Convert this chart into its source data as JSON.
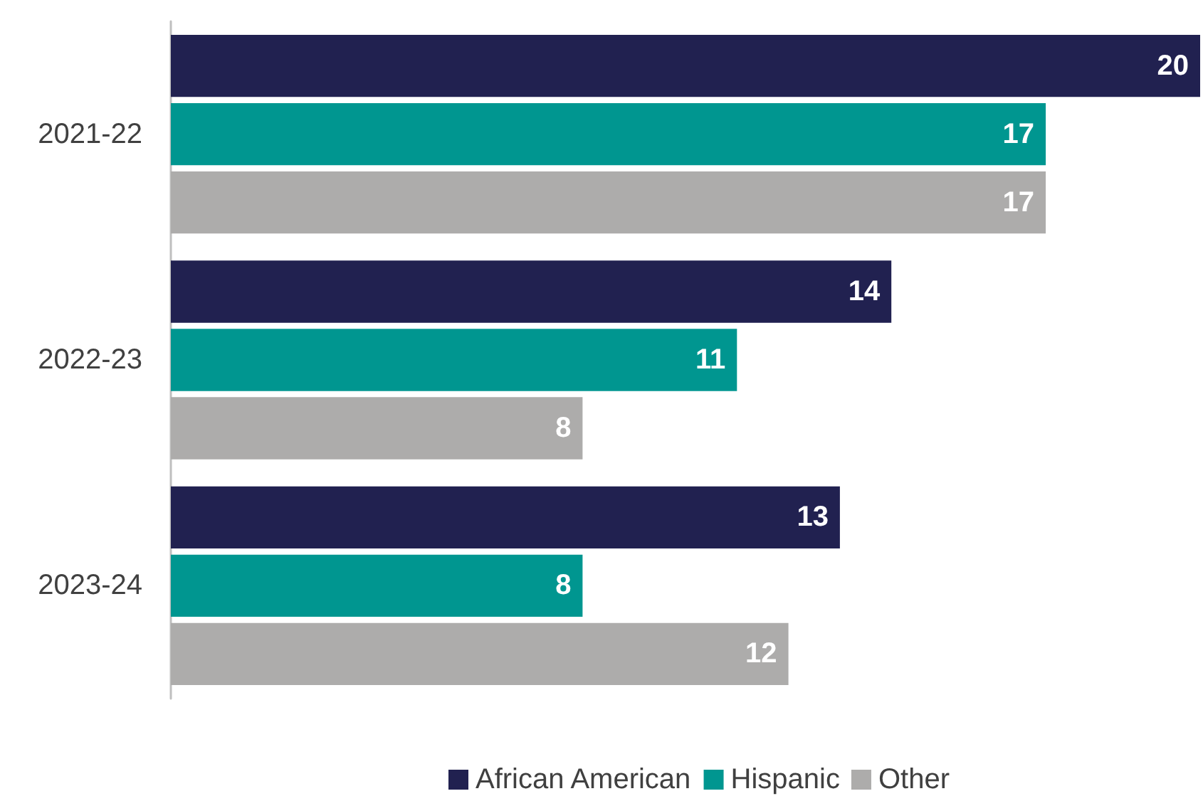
{
  "chart_data": {
    "type": "bar",
    "orientation": "horizontal",
    "categories": [
      "2021-22",
      "2022-23",
      "2023-24"
    ],
    "series": [
      {
        "name": "African American",
        "color": "#212150",
        "values": [
          20,
          14,
          13
        ]
      },
      {
        "name": "Hispanic",
        "color": "#009690",
        "values": [
          17,
          11,
          8
        ]
      },
      {
        "name": "Other",
        "color": "#adacab",
        "values": [
          17,
          8,
          12
        ]
      }
    ],
    "data_labels": true,
    "legend": "bottom",
    "grid": false
  }
}
